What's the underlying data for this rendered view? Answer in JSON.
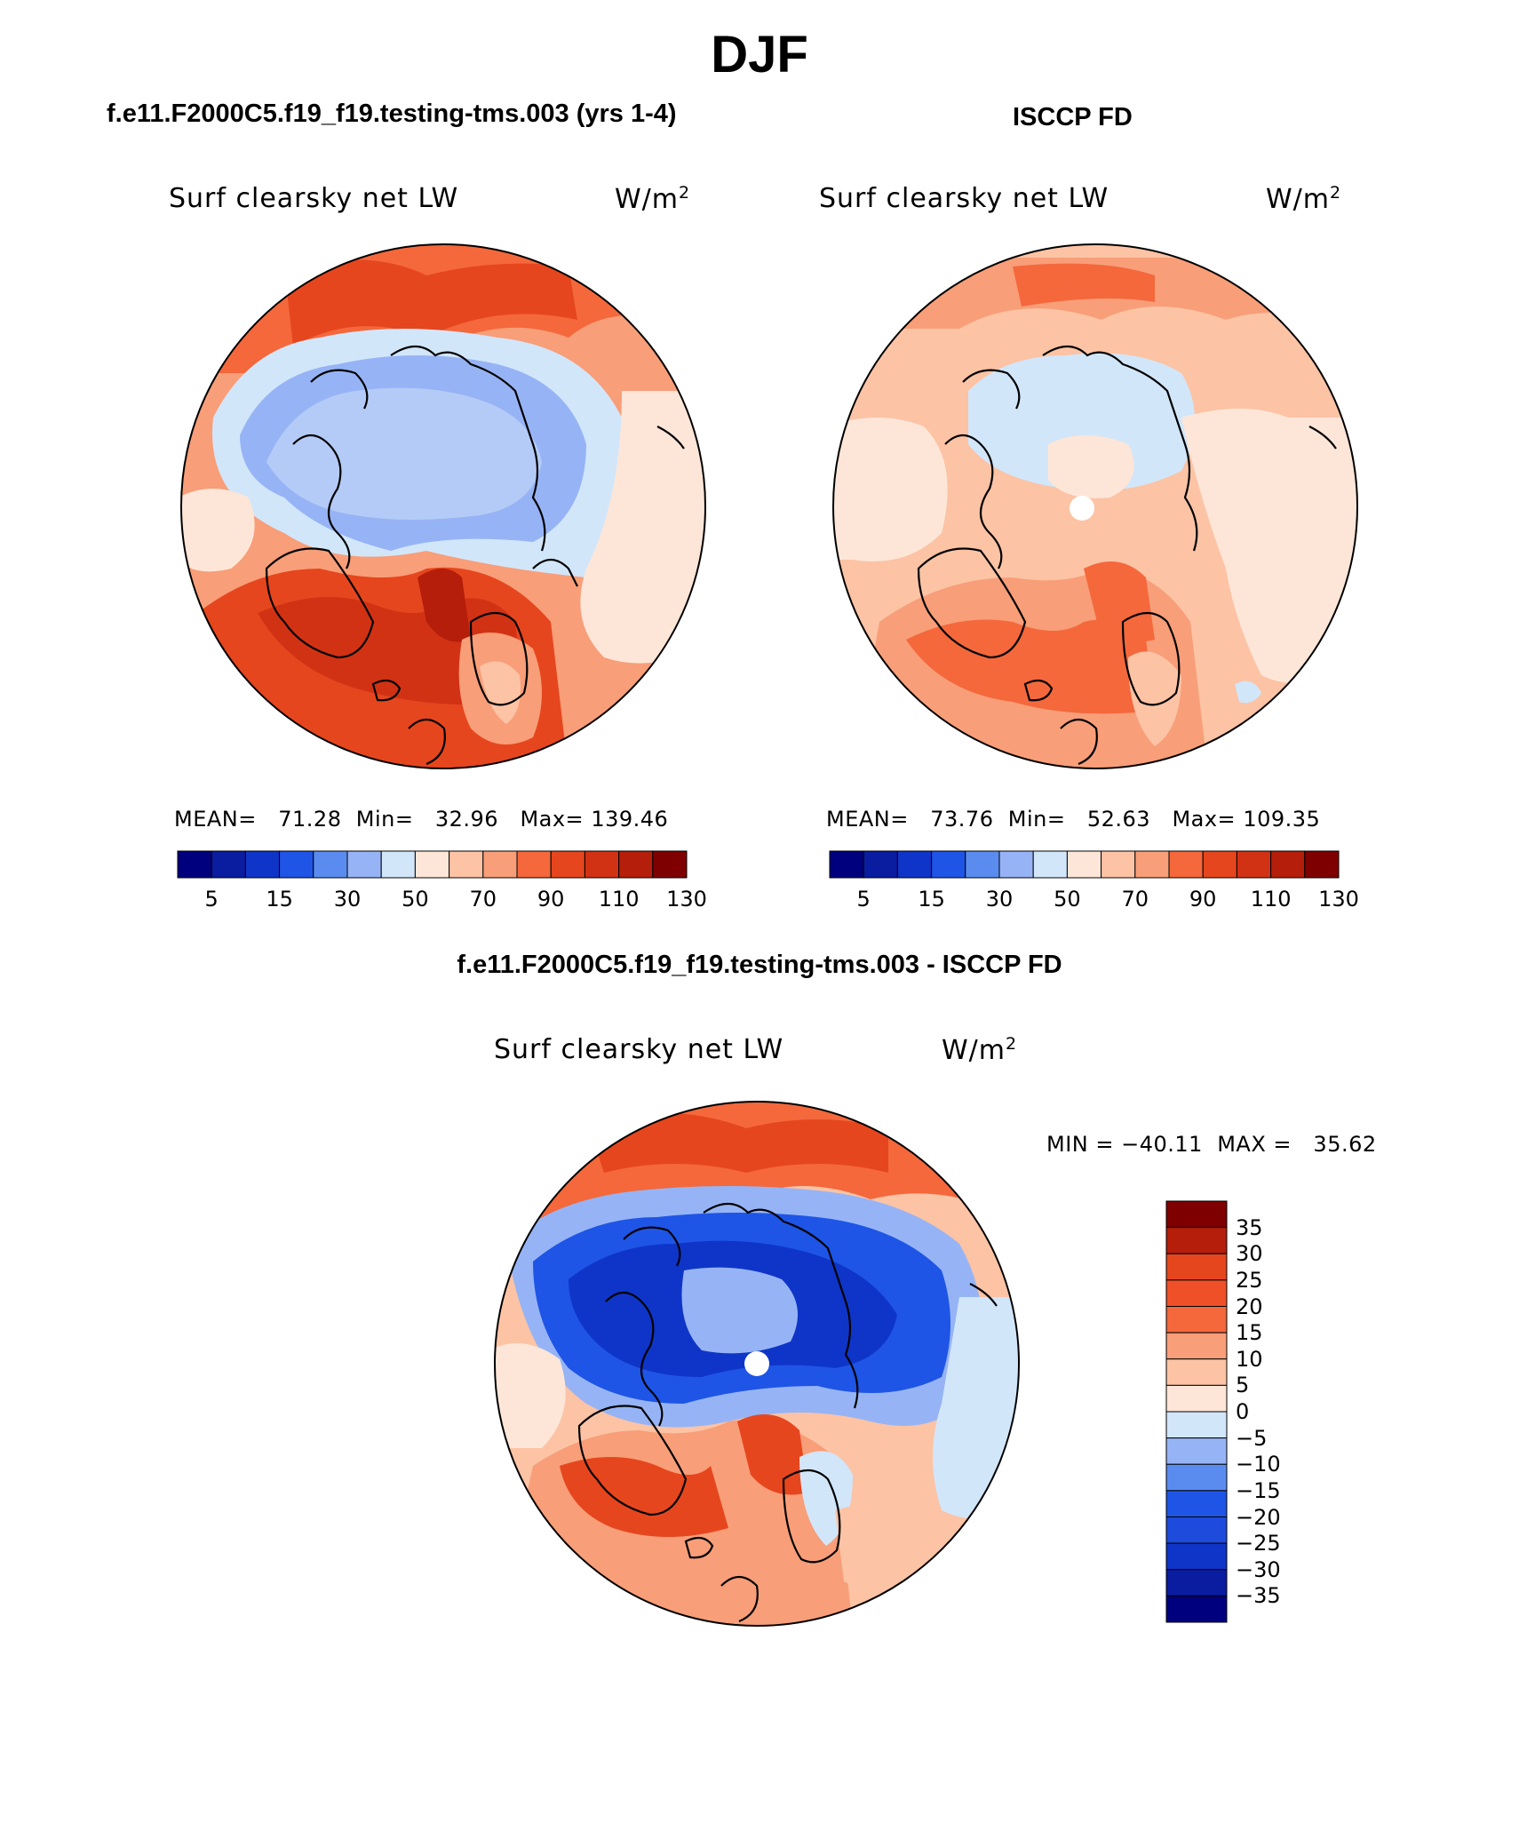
{
  "title": "DJF",
  "panels": [
    {
      "case": "f.e11.F2000C5.f19_f19.testing-tms.003 (yrs 1-4)",
      "variable": "Surf clearsky net LW",
      "units_base": "W/m",
      "units_exp": "2",
      "stats": {
        "mean_label": "MEAN=",
        "mean": "71.28",
        "min_label": "Min=",
        "min": "32.96",
        "max_label": "Max=",
        "max": "139.46"
      }
    },
    {
      "case": "ISCCP FD",
      "variable": "Surf clearsky net LW",
      "units_base": "W/m",
      "units_exp": "2",
      "stats": {
        "mean_label": "MEAN=",
        "mean": "73.76",
        "min_label": "Min=",
        "min": "52.63",
        "max_label": "Max=",
        "max": "109.35"
      }
    },
    {
      "case": "f.e11.F2000C5.f19_f19.testing-tms.003 - ISCCP FD",
      "variable": "Surf clearsky net LW",
      "units_base": "W/m",
      "units_exp": "2",
      "stats": {
        "min_label": "MIN =",
        "min": "−40.11",
        "max_label": "MAX =",
        "max": "35.62"
      }
    }
  ],
  "colorbar_fields": {
    "colors": [
      "#00007f",
      "#0a1ca0",
      "#0f35c8",
      "#1e55e6",
      "#5a8cf0",
      "#96b4f5",
      "#d2e6fa",
      "#fde6d8",
      "#fcc3a5",
      "#f89e78",
      "#f4683c",
      "#e6461e",
      "#d23214",
      "#b41e0a",
      "#7f0000"
    ],
    "labels": [
      "5",
      "15",
      "30",
      "50",
      "70",
      "90",
      "110",
      "130"
    ]
  },
  "colorbar_diff": {
    "colors": [
      "#00007f",
      "#0a1ca0",
      "#0f35c8",
      "#1e4bdc",
      "#1e55e6",
      "#5a8cf0",
      "#96b4f5",
      "#d2e6fa",
      "#fde6d8",
      "#fcc3a5",
      "#f89e78",
      "#f4683c",
      "#f05028",
      "#e6461e",
      "#b41e0a",
      "#7f0000"
    ],
    "labels": [
      "35",
      "30",
      "25",
      "20",
      "15",
      "10",
      "5",
      "0",
      "−5",
      "−10",
      "−15",
      "−20",
      "−25",
      "−30",
      "−35"
    ]
  }
}
